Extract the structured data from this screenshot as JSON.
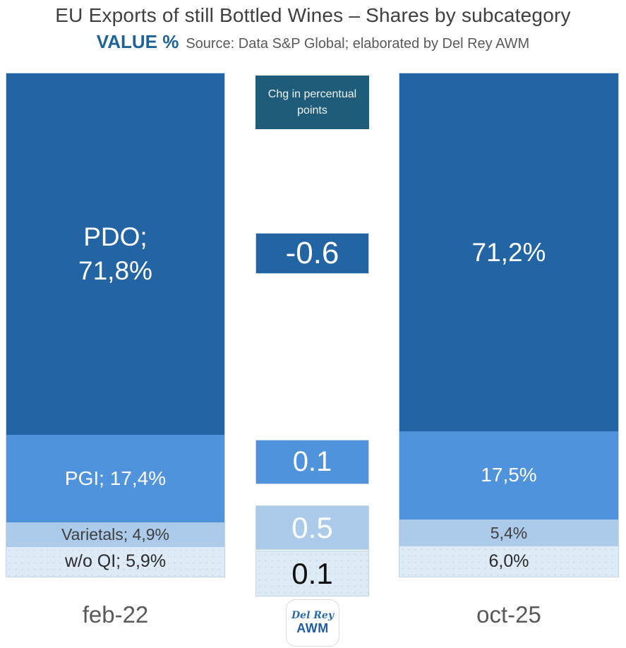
{
  "header": {
    "title": "EU Exports of still Bottled Wines – Shares by subcategory",
    "metric_label": "VALUE %",
    "source": "Source: Data S&P Global; elaborated by Del Rey AWM"
  },
  "middle_column": {
    "header_label": "Chg in percentual points",
    "changes": [
      {
        "series": "PDO",
        "value": "-0.6"
      },
      {
        "series": "PGI",
        "value": "0.1"
      },
      {
        "series": "Varietals",
        "value": "0.5"
      },
      {
        "series": "w/o QI",
        "value": "0.1"
      }
    ]
  },
  "bars": {
    "feb22": {
      "axis_label": "feb-22",
      "segments": [
        {
          "series": "PDO",
          "display": "PDO;\n71,8%",
          "pct": 71.8
        },
        {
          "series": "PGI",
          "display": "PGI; 17,4%",
          "pct": 17.4
        },
        {
          "series": "Varietals",
          "display": "Varietals; 4,9%",
          "pct": 4.9
        },
        {
          "series": "w/o QI",
          "display": "w/o QI; 5,9%",
          "pct": 5.9
        }
      ]
    },
    "oct25": {
      "axis_label": "oct-25",
      "segments": [
        {
          "series": "PDO",
          "display": "71,2%",
          "pct": 71.2
        },
        {
          "series": "PGI",
          "display": "17,5%",
          "pct": 17.5
        },
        {
          "series": "Varietals",
          "display": "5,4%",
          "pct": 5.4
        },
        {
          "series": "w/o QI",
          "display": "6,0%",
          "pct": 6.0
        }
      ]
    }
  },
  "logo": {
    "line1": "Del Rey",
    "line2": "AWM"
  },
  "colors": {
    "pdo": "#2364A5",
    "pgi": "#4E93DB",
    "varietals": "#ACCBEB",
    "wo_qi": "#DEEAF5",
    "header_box": "#1F5C7A",
    "metric_blue": "#1E6398",
    "title_gray": "#3F3F3F",
    "label_gray": "#595959",
    "logo_blue": "#1F5FA0"
  },
  "chart_data": {
    "type": "bar",
    "variant": "100%-stacked-columns-with-change-column",
    "title": "EU Exports of still Bottled Wines – Shares by subcategory",
    "subtitle": "VALUE %",
    "source": "Source: Data S&P Global; elaborated by Del Rey AWM",
    "categories": [
      "feb-22",
      "oct-25"
    ],
    "series": [
      {
        "name": "PDO",
        "values": [
          71.8,
          71.2
        ],
        "color": "#2364A5",
        "change_pp": -0.6
      },
      {
        "name": "PGI",
        "values": [
          17.4,
          17.5
        ],
        "color": "#4E93DB",
        "change_pp": 0.1
      },
      {
        "name": "Varietals",
        "values": [
          4.9,
          5.4
        ],
        "color": "#ACCBEB",
        "change_pp": 0.5
      },
      {
        "name": "w/o QI",
        "values": [
          5.9,
          6.0
        ],
        "color": "#DEEAF5",
        "change_pp": 0.1
      }
    ],
    "middle_column_header": "Chg in percentual points",
    "ylim": [
      0,
      100
    ],
    "grid": false,
    "legend": "labels-inside-segments",
    "stack_order_top_to_bottom": [
      "PDO",
      "PGI",
      "Varietals",
      "w/o QI"
    ]
  }
}
